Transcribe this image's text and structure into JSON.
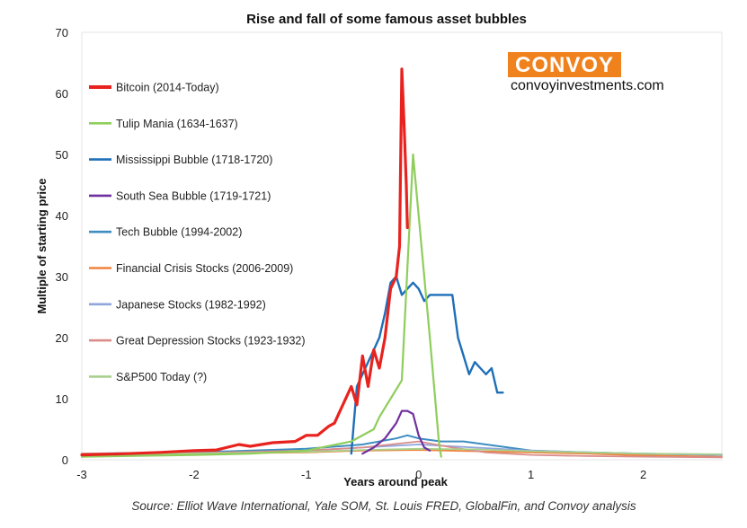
{
  "chart_data": {
    "type": "line",
    "title": "Rise and fall of some famous asset bubbles",
    "xlabel": "Years around peak",
    "ylabel": "Multiple of starting price",
    "xlim": [
      -3,
      2.7
    ],
    "ylim": [
      0,
      70
    ],
    "xticks": [
      -3,
      -2,
      -1,
      0,
      1,
      2
    ],
    "yticks": [
      0,
      10,
      20,
      30,
      40,
      50,
      60,
      70
    ],
    "grid": false,
    "legend_position": "left",
    "source": "Source: Elliot Wave International, Yale SOM, St. Louis FRED, GlobalFin, and Convoy analysis",
    "branding": {
      "logo_text": "CONVOY",
      "website": "convoyinvestments.com",
      "logo_color": "#f0821e"
    },
    "series": [
      {
        "name": "Bitcoin (2014-Today)",
        "color": "#e8231f",
        "width": 3.2,
        "x": [
          -3.0,
          -2.6,
          -2.3,
          -2.0,
          -1.8,
          -1.6,
          -1.5,
          -1.3,
          -1.1,
          -1.0,
          -0.9,
          -0.8,
          -0.75,
          -0.7,
          -0.6,
          -0.55,
          -0.5,
          -0.45,
          -0.4,
          -0.35,
          -0.3,
          -0.25,
          -0.2,
          -0.17,
          -0.15,
          -0.13,
          -0.11,
          -0.1
        ],
        "y": [
          0.8,
          1.0,
          1.2,
          1.5,
          1.6,
          2.5,
          2.2,
          2.8,
          3.0,
          4.0,
          4.0,
          5.5,
          6.0,
          8.0,
          12.0,
          9.0,
          17.0,
          12.0,
          18.0,
          15.0,
          20.0,
          28.0,
          30.0,
          35.0,
          64.0,
          55.0,
          45.0,
          38.0
        ]
      },
      {
        "name": "Tulip Mania (1634-1637)",
        "color": "#8fcd5c",
        "width": 2.2,
        "x": [
          -3.0,
          -2.0,
          -1.5,
          -1.0,
          -0.6,
          -0.4,
          -0.35,
          -0.25,
          -0.15,
          -0.05,
          0.1,
          0.18,
          0.2
        ],
        "y": [
          0.5,
          0.8,
          1.0,
          1.5,
          3.0,
          5.0,
          7.0,
          10.0,
          13.0,
          50.0,
          20.0,
          3.0,
          0.5
        ]
      },
      {
        "name": "Mississippi Bubble (1718-1720)",
        "color": "#1f6fb8",
        "width": 2.4,
        "x": [
          -0.6,
          -0.55,
          -0.5,
          -0.45,
          -0.4,
          -0.35,
          -0.3,
          -0.25,
          -0.2,
          -0.15,
          -0.1,
          -0.05,
          0.0,
          0.05,
          0.1,
          0.15,
          0.2,
          0.25,
          0.3,
          0.35,
          0.4,
          0.45,
          0.5,
          0.55,
          0.6,
          0.65,
          0.7,
          0.75
        ],
        "y": [
          1.0,
          12.0,
          14.0,
          16.0,
          18.0,
          20.0,
          24.0,
          29.0,
          30.0,
          27.0,
          28.0,
          29.0,
          28.0,
          26.0,
          27.0,
          27.0,
          27.0,
          27.0,
          27.0,
          20.0,
          17.0,
          14.0,
          16.0,
          15.0,
          14.0,
          15.0,
          11.0,
          11.0
        ]
      },
      {
        "name": "South Sea Bubble (1719-1721)",
        "color": "#7030a0",
        "width": 2.2,
        "x": [
          -0.5,
          -0.4,
          -0.3,
          -0.2,
          -0.15,
          -0.1,
          -0.05,
          0.0,
          0.05,
          0.1
        ],
        "y": [
          1.0,
          2.0,
          3.5,
          6.0,
          8.0,
          8.0,
          7.5,
          4.0,
          2.0,
          1.5
        ]
      },
      {
        "name": "Tech Bubble (1994-2002)",
        "color": "#3d8dc1",
        "width": 2.0,
        "x": [
          -3.0,
          -2.0,
          -1.0,
          -0.5,
          -0.2,
          -0.1,
          0.0,
          0.2,
          0.4,
          0.6,
          0.8,
          1.0,
          1.5,
          2.0,
          2.7
        ],
        "y": [
          1.0,
          1.2,
          1.8,
          2.5,
          3.5,
          4.0,
          3.5,
          3.0,
          3.0,
          2.5,
          2.0,
          1.5,
          1.2,
          1.0,
          0.8
        ]
      },
      {
        "name": "Financial Crisis Stocks (2006-2009)",
        "color": "#f0843c",
        "width": 1.8,
        "x": [
          -3.0,
          -2.0,
          -1.0,
          -0.5,
          0.0,
          0.5,
          1.0,
          1.5,
          2.0,
          2.7
        ],
        "y": [
          1.0,
          1.0,
          1.2,
          1.5,
          1.6,
          1.4,
          1.2,
          1.0,
          0.7,
          0.5
        ]
      },
      {
        "name": "Japanese Stocks (1982-1992)",
        "color": "#8fa6dc",
        "width": 1.8,
        "x": [
          -3.0,
          -2.0,
          -1.0,
          -0.5,
          0.0,
          0.5,
          1.0,
          1.5,
          2.0,
          2.7
        ],
        "y": [
          0.8,
          1.0,
          1.5,
          2.0,
          2.5,
          2.0,
          1.5,
          1.2,
          1.0,
          0.8
        ]
      },
      {
        "name": "Great Depression Stocks (1923-1932)",
        "color": "#d98c8a",
        "width": 1.8,
        "x": [
          -3.0,
          -2.0,
          -1.0,
          -0.5,
          0.0,
          0.3,
          0.6,
          1.0,
          1.5,
          2.0,
          2.7
        ],
        "y": [
          1.0,
          1.1,
          1.5,
          2.0,
          3.0,
          2.0,
          1.2,
          0.8,
          0.6,
          0.5,
          0.4
        ]
      },
      {
        "name": "S&P500 Today (?)",
        "color": "#a8d08d",
        "width": 1.8,
        "x": [
          -3.0,
          -2.0,
          -1.0,
          -0.5,
          0.0,
          0.5,
          1.0,
          1.5,
          2.0,
          2.7
        ],
        "y": [
          0.9,
          1.0,
          1.3,
          1.6,
          1.8,
          1.7,
          1.4,
          1.2,
          1.0,
          0.9
        ]
      }
    ]
  }
}
